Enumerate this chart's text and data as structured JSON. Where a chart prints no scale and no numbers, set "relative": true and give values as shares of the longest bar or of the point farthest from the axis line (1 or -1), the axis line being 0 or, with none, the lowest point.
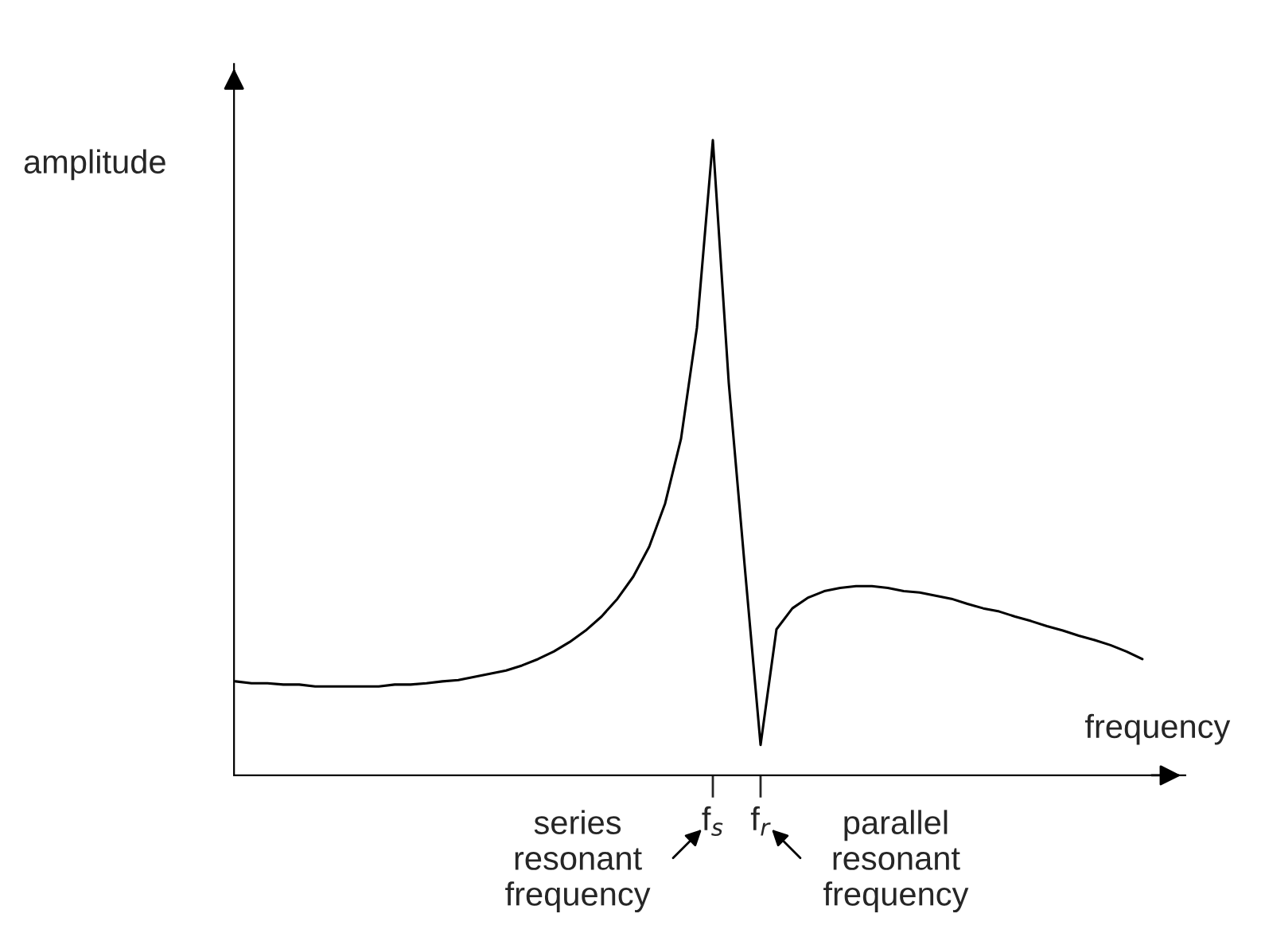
{
  "chart_data": {
    "type": "line",
    "relative": true,
    "xlabel": "frequency",
    "ylabel": "amplitude",
    "categories": [
      null,
      null,
      null,
      null,
      null,
      null,
      null,
      null,
      null,
      null,
      null,
      null,
      null,
      null,
      null,
      null,
      null,
      null,
      null,
      null,
      null,
      null,
      null,
      null,
      null,
      null,
      null,
      null,
      null,
      null,
      "f$_{s}$",
      null,
      null,
      "f$_{r}$",
      null,
      null,
      null,
      null,
      null,
      null,
      null,
      null,
      null,
      null,
      null,
      null,
      null,
      null,
      null,
      null,
      null,
      null,
      null,
      null,
      null,
      null,
      null,
      null
    ],
    "series": [
      {
        "color": "#000000",
        "values": [
          0.148,
          0.145,
          0.145,
          0.143,
          0.143,
          0.14,
          0.14,
          0.14,
          0.14,
          0.14,
          0.143,
          0.143,
          0.145,
          0.148,
          0.15,
          0.155,
          0.16,
          0.165,
          0.173,
          0.183,
          0.195,
          0.21,
          0.228,
          0.25,
          0.278,
          0.313,
          0.36,
          0.428,
          0.53,
          0.705,
          1.0,
          0.618,
          0.33,
          0.048,
          0.23,
          0.263,
          0.28,
          0.29,
          0.295,
          0.298,
          0.298,
          0.295,
          0.29,
          0.288,
          0.283,
          0.278,
          0.27,
          0.263,
          0.258,
          0.25,
          0.243,
          0.235,
          0.228,
          0.22,
          0.213,
          0.205,
          0.195,
          0.183
        ]
      }
    ],
    "annotations": [
      "series\nresonant\nfrequency",
      "parallel\nresonant\nfrequency"
    ],
    "line_style": "solid"
  }
}
